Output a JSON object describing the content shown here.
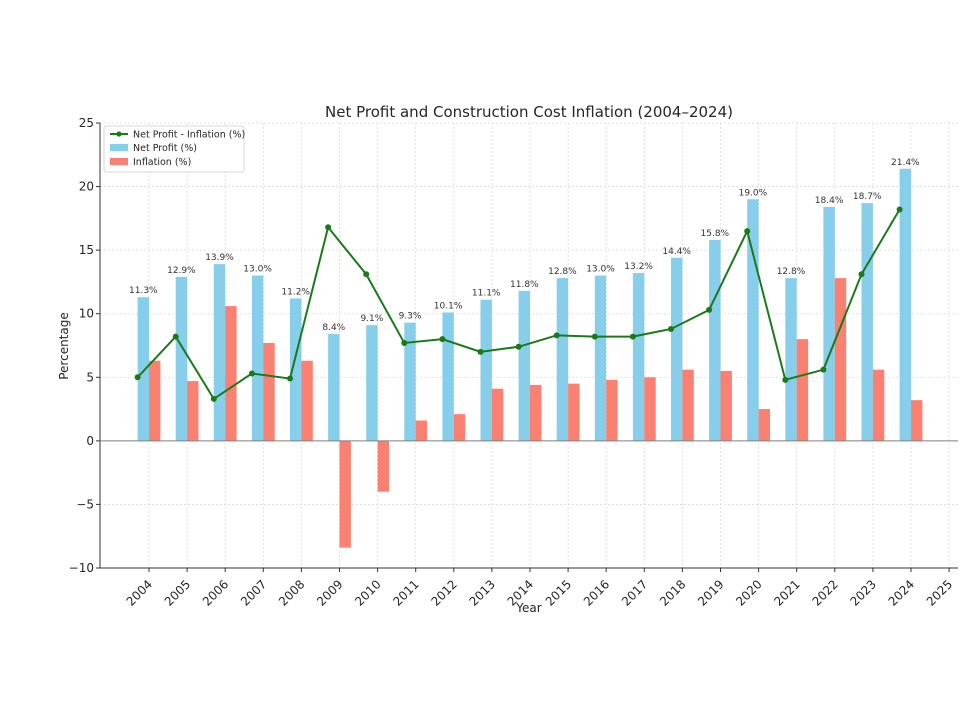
{
  "chart_data": {
    "type": "bar",
    "title": "Net Profit and Construction Cost Inflation (2004–2024)",
    "xlabel": "Year",
    "ylabel": "Percentage",
    "ylim": [
      -10,
      25
    ],
    "yticks": [
      -10,
      -5,
      0,
      5,
      10,
      15,
      20,
      25
    ],
    "ytick_labels": [
      "−10",
      "−5",
      "0",
      "5",
      "10",
      "15",
      "20",
      "25"
    ],
    "xticks": [
      "2004",
      "2005",
      "2006",
      "2007",
      "2008",
      "2009",
      "2010",
      "2011",
      "2012",
      "2013",
      "2014",
      "2015",
      "2016",
      "2017",
      "2018",
      "2019",
      "2020",
      "2021",
      "2022",
      "2023",
      "2024",
      "2025"
    ],
    "categories": [
      "2004",
      "2005",
      "2006",
      "2007",
      "2008",
      "2009",
      "2010",
      "2011",
      "2012",
      "2013",
      "2014",
      "2015",
      "2016",
      "2017",
      "2018",
      "2019",
      "2020",
      "2021",
      "2022",
      "2023",
      "2024"
    ],
    "grid": true,
    "legend_position": "top-left",
    "series": [
      {
        "name": "Net Profit (%)",
        "kind": "bar",
        "color": "#87ceeb",
        "values": [
          11.3,
          12.9,
          13.9,
          13.0,
          11.2,
          8.4,
          9.1,
          9.3,
          10.1,
          11.1,
          11.8,
          12.8,
          13.0,
          13.2,
          14.4,
          15.8,
          19.0,
          12.8,
          18.4,
          18.7,
          21.4
        ],
        "labels": [
          "11.3%",
          "12.9%",
          "13.9%",
          "13.0%",
          "11.2%",
          "8.4%",
          "9.1%",
          "9.3%",
          "10.1%",
          "11.1%",
          "11.8%",
          "12.8%",
          "13.0%",
          "13.2%",
          "14.4%",
          "15.8%",
          "19.0%",
          "12.8%",
          "18.4%",
          "18.7%",
          "21.4%"
        ]
      },
      {
        "name": "Inflation (%)",
        "kind": "bar",
        "color": "#fa8072",
        "values": [
          6.3,
          4.7,
          10.6,
          7.7,
          6.3,
          -8.4,
          -4.0,
          1.6,
          2.1,
          4.1,
          4.4,
          4.5,
          4.8,
          5.0,
          5.6,
          5.5,
          2.5,
          8.0,
          12.8,
          5.6,
          3.2
        ]
      },
      {
        "name": "Net Profit - Inflation (%)",
        "kind": "line",
        "color": "#1a7a1a",
        "values": [
          5.0,
          8.2,
          3.3,
          5.3,
          4.9,
          16.8,
          13.1,
          7.7,
          8.0,
          7.0,
          7.4,
          8.3,
          8.2,
          8.2,
          8.8,
          10.3,
          16.5,
          4.8,
          5.6,
          13.1,
          18.2
        ]
      }
    ]
  }
}
